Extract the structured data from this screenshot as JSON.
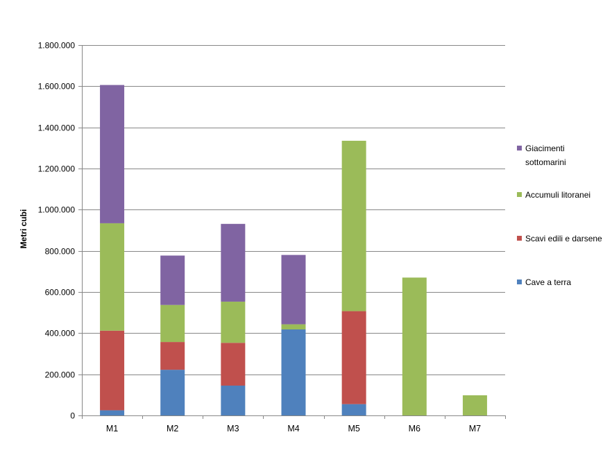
{
  "chart_data": {
    "type": "bar",
    "stacked": true,
    "title": "",
    "xlabel": "",
    "ylabel": "Metri cubi",
    "ylim": [
      0,
      1800000
    ],
    "yticks": [
      0,
      200000,
      400000,
      600000,
      800000,
      1000000,
      1200000,
      1400000,
      1600000,
      1800000
    ],
    "ytick_labels": [
      "0",
      "200.000",
      "400.000",
      "600.000",
      "800.000",
      "1.000.000",
      "1.200.000",
      "1.400.000",
      "1.600.000",
      "1.800.000"
    ],
    "grid": true,
    "legend_position": "right",
    "categories": [
      "M1",
      "M2",
      "M3",
      "M4",
      "M5",
      "M6",
      "M7"
    ],
    "series": [
      {
        "name": "Cave a terra",
        "color": "#4F81BD",
        "values": [
          25000,
          222000,
          145000,
          418000,
          55000,
          0,
          0
        ]
      },
      {
        "name": "Scavi edili e darsene",
        "color": "#C0504D",
        "values": [
          387000,
          135000,
          208000,
          0,
          452000,
          0,
          0
        ]
      },
      {
        "name": "Accumuli litoranei",
        "color": "#9BBB59",
        "values": [
          522000,
          180000,
          200000,
          25000,
          828000,
          670000,
          98000
        ]
      },
      {
        "name": "Giacimenti sottomarini",
        "color": "#8064A2",
        "values": [
          672000,
          240000,
          378000,
          337000,
          0,
          0,
          0
        ]
      }
    ],
    "legend": [
      {
        "lines": [
          "Giacimenti",
          "sottomarini"
        ],
        "color": "#8064A2"
      },
      {
        "lines": [
          "Accumuli litoranei"
        ],
        "color": "#9BBB59"
      },
      {
        "lines": [
          "Scavi edili e darsene"
        ],
        "color": "#C0504D"
      },
      {
        "lines": [
          "Cave a terra"
        ],
        "color": "#4F81BD"
      }
    ],
    "colors": {
      "grid": "#868686",
      "axis": "#868686"
    }
  }
}
